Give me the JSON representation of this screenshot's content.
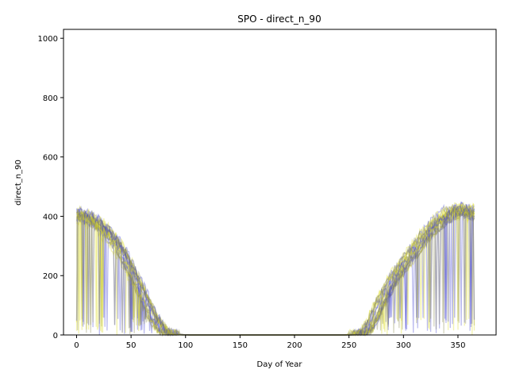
{
  "chart_data": {
    "type": "line",
    "title": "SPO - direct_n_90",
    "xlabel": "Day of Year",
    "ylabel": "direct_n_90",
    "xlim": [
      -12,
      385
    ],
    "ylim": [
      0,
      1030
    ],
    "xticks": [
      0,
      50,
      100,
      150,
      200,
      250,
      300,
      350
    ],
    "yticks": [
      0,
      200,
      400,
      600,
      800,
      1000
    ],
    "grid": false,
    "legend": "none",
    "colors": {
      "blue": "#4040d0",
      "olive": "#8a8a50",
      "yellow": "#dede20"
    },
    "profile": {
      "x": [
        0,
        10,
        20,
        30,
        40,
        50,
        60,
        70,
        80,
        90,
        100,
        150,
        200,
        250,
        260,
        265,
        270,
        280,
        290,
        300,
        310,
        320,
        330,
        340,
        350,
        360,
        365
      ],
      "y": [
        410,
        400,
        375,
        340,
        290,
        220,
        140,
        60,
        10,
        2,
        0,
        0,
        0,
        0,
        5,
        10,
        40,
        120,
        190,
        240,
        290,
        340,
        380,
        410,
        425,
        420,
        410
      ]
    },
    "series_count": 24
  }
}
